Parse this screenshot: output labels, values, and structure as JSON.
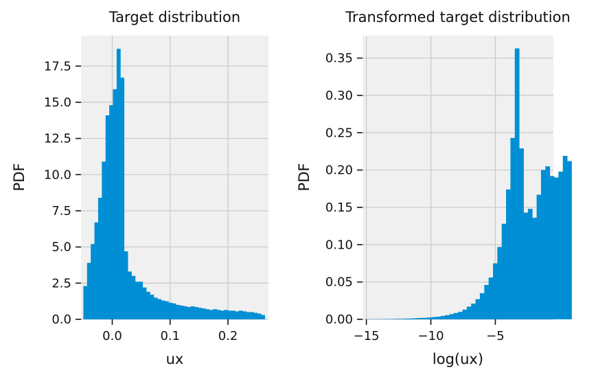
{
  "chart_data": [
    {
      "type": "bar",
      "title": "Target distribution",
      "xlabel": "ux",
      "ylabel": "PDF",
      "xlim": [
        -0.054,
        0.27
      ],
      "ylim": [
        0,
        19.6
      ],
      "xticks": [
        0.0,
        0.1,
        0.2
      ],
      "xtick_labels": [
        "0.0",
        "0.1",
        "0.2"
      ],
      "yticks": [
        0.0,
        2.5,
        5.0,
        7.5,
        10.0,
        12.5,
        15.0,
        17.5
      ],
      "ytick_labels": [
        "0.0",
        "2.5",
        "5.0",
        "7.5",
        "10.0",
        "12.5",
        "15.0",
        "17.5"
      ],
      "grid": true,
      "color": "#008fd5",
      "bin_start": -0.05,
      "bin_width": 0.0064,
      "values": [
        2.3,
        3.9,
        5.2,
        6.7,
        8.4,
        10.9,
        14.1,
        14.8,
        15.9,
        18.7,
        16.7,
        4.7,
        3.3,
        3.0,
        2.6,
        2.6,
        2.2,
        1.9,
        1.7,
        1.5,
        1.4,
        1.3,
        1.25,
        1.15,
        1.1,
        1.0,
        0.95,
        0.9,
        0.85,
        0.9,
        0.85,
        0.8,
        0.75,
        0.7,
        0.65,
        0.7,
        0.65,
        0.6,
        0.65,
        0.6,
        0.6,
        0.55,
        0.6,
        0.55,
        0.5,
        0.5,
        0.45,
        0.4,
        0.3
      ]
    },
    {
      "type": "bar",
      "title": "Transformed target distribution",
      "xlabel": "log(ux)",
      "ylabel": "PDF",
      "xlim": [
        -15.3,
        -0.5
      ],
      "ylim": [
        0,
        0.38
      ],
      "xticks": [
        -15,
        -10,
        -5
      ],
      "xtick_labels": [
        "−15",
        "−10",
        "−5"
      ],
      "yticks": [
        0.0,
        0.05,
        0.1,
        0.15,
        0.2,
        0.25,
        0.3,
        0.35
      ],
      "ytick_labels": [
        "0.00",
        "0.05",
        "0.10",
        "0.15",
        "0.20",
        "0.25",
        "0.30",
        "0.35"
      ],
      "grid": true,
      "color": "#008fd5",
      "bin_start": -15.0,
      "bin_width": 0.3385,
      "values": [
        0.0003,
        0.0003,
        0.0003,
        0.0003,
        0.0004,
        0.0005,
        0.0006,
        0.0007,
        0.0008,
        0.001,
        0.0012,
        0.0015,
        0.0018,
        0.002,
        0.0025,
        0.003,
        0.0035,
        0.0045,
        0.0055,
        0.007,
        0.0085,
        0.01,
        0.013,
        0.017,
        0.021,
        0.027,
        0.035,
        0.046,
        0.056,
        0.075,
        0.097,
        0.128,
        0.174,
        0.243,
        0.363,
        0.229,
        0.143,
        0.148,
        0.136,
        0.167,
        0.2,
        0.205,
        0.192,
        0.19,
        0.198,
        0.219,
        0.212
      ]
    }
  ]
}
